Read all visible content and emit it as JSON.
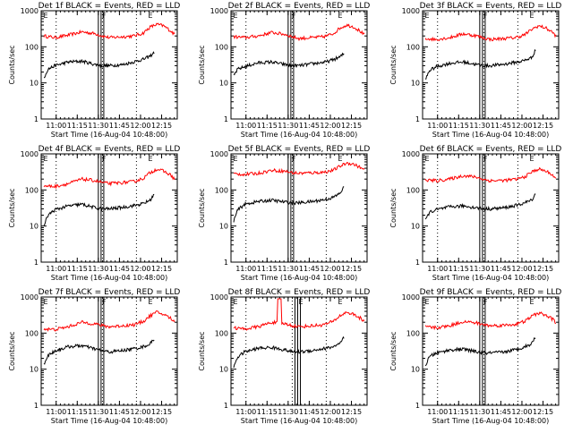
{
  "chart_data": [
    {
      "type": "line",
      "title": "Det 1f BLACK = Events, RED = LLD",
      "xlabel": "Start Time (16-Aug-04 10:48:00)",
      "ylabel": "Counts/sec",
      "xticks": [
        "11:00",
        "11:15",
        "11:30",
        "11:45",
        "12:00",
        "12:15"
      ],
      "yticks": [
        "1",
        "10",
        "100",
        "1000"
      ],
      "ylim": [
        1,
        1000
      ],
      "yscale": "log",
      "series": [
        {
          "color": "#ff0000",
          "x": [
            0.02,
            0.1,
            0.2,
            0.3,
            0.4,
            0.45,
            0.5,
            0.6,
            0.68,
            0.75,
            0.8,
            0.85,
            0.9,
            0.95,
            0.98
          ],
          "values": [
            200,
            180,
            210,
            260,
            230,
            200,
            180,
            190,
            200,
            240,
            350,
            420,
            380,
            280,
            220
          ]
        },
        {
          "color": "#000000",
          "x": [
            0.02,
            0.05,
            0.1,
            0.2,
            0.3,
            0.4,
            0.45,
            0.5,
            0.6,
            0.7,
            0.75,
            0.8,
            0.83
          ],
          "values": [
            14,
            24,
            30,
            38,
            40,
            32,
            30,
            30,
            32,
            40,
            45,
            55,
            70
          ]
        }
      ],
      "annotations": {
        "dotted_x": [
          0.11,
          0.45,
          0.7
        ],
        "box_x": [
          0.42,
          0.46
        ],
        "marks": [
          "E",
          "F",
          "E"
        ],
        "red_spike": null
      }
    },
    {
      "type": "line",
      "title": "Det 2f BLACK = Events, RED = LLD",
      "xlabel": "Start Time (16-Aug-04 10:48:00)",
      "ylabel": "Counts/sec",
      "xticks": [
        "11:00",
        "11:15",
        "11:30",
        "11:45",
        "12:00",
        "12:15"
      ],
      "yticks": [
        "1",
        "10",
        "100",
        "1000"
      ],
      "ylim": [
        1,
        1000
      ],
      "yscale": "log",
      "series": [
        {
          "color": "#ff0000",
          "x": [
            0.02,
            0.1,
            0.2,
            0.3,
            0.4,
            0.45,
            0.5,
            0.6,
            0.68,
            0.75,
            0.8,
            0.85,
            0.9,
            0.95,
            0.98
          ],
          "values": [
            190,
            180,
            200,
            250,
            220,
            190,
            170,
            180,
            190,
            230,
            330,
            400,
            360,
            270,
            210
          ]
        },
        {
          "color": "#000000",
          "x": [
            0.02,
            0.05,
            0.1,
            0.2,
            0.3,
            0.4,
            0.45,
            0.5,
            0.6,
            0.7,
            0.75,
            0.8,
            0.83
          ],
          "values": [
            16,
            24,
            28,
            36,
            38,
            32,
            30,
            30,
            34,
            38,
            44,
            52,
            65
          ]
        }
      ],
      "annotations": {
        "dotted_x": [
          0.11,
          0.45,
          0.7
        ],
        "box_x": [
          0.42,
          0.46
        ],
        "marks": [
          "E",
          "F",
          "E"
        ],
        "red_spike": null
      }
    },
    {
      "type": "line",
      "title": "Det 3f BLACK = Events, RED = LLD",
      "xlabel": "Start Time (16-Aug-04 10:48:00)",
      "ylabel": "Counts/sec",
      "xticks": [
        "11:00",
        "11:15",
        "11:30",
        "11:45",
        "12:00",
        "12:15"
      ],
      "yticks": [
        "1",
        "10",
        "100",
        "1000"
      ],
      "ylim": [
        1,
        1000
      ],
      "yscale": "log",
      "series": [
        {
          "color": "#ff0000",
          "x": [
            0.02,
            0.1,
            0.2,
            0.3,
            0.4,
            0.45,
            0.5,
            0.6,
            0.68,
            0.75,
            0.8,
            0.85,
            0.9,
            0.95,
            0.98
          ],
          "values": [
            170,
            160,
            180,
            230,
            200,
            175,
            160,
            170,
            180,
            215,
            300,
            380,
            340,
            260,
            200
          ]
        },
        {
          "color": "#000000",
          "x": [
            0.02,
            0.05,
            0.1,
            0.2,
            0.3,
            0.4,
            0.45,
            0.5,
            0.6,
            0.7,
            0.75,
            0.8,
            0.83
          ],
          "values": [
            12,
            22,
            28,
            35,
            38,
            32,
            30,
            30,
            33,
            38,
            42,
            50,
            80
          ]
        }
      ],
      "annotations": {
        "dotted_x": [
          0.11,
          0.45,
          0.7
        ],
        "box_x": [
          0.42,
          0.46
        ],
        "marks": [
          "E",
          "F",
          "E"
        ],
        "red_spike": null
      }
    },
    {
      "type": "line",
      "title": "Det 4f BLACK = Events, RED = LLD",
      "xlabel": "Start Time (16-Aug-04 10:48:00)",
      "ylabel": "Counts/sec",
      "xticks": [
        "11:00",
        "11:15",
        "11:30",
        "11:45",
        "12:00",
        "12:15"
      ],
      "yticks": [
        "1",
        "10",
        "100",
        "1000"
      ],
      "ylim": [
        1,
        1000
      ],
      "yscale": "log",
      "series": [
        {
          "color": "#ff0000",
          "x": [
            0.02,
            0.1,
            0.2,
            0.3,
            0.4,
            0.45,
            0.5,
            0.6,
            0.68,
            0.75,
            0.8,
            0.85,
            0.9,
            0.95,
            0.98
          ],
          "values": [
            130,
            125,
            150,
            200,
            180,
            160,
            150,
            160,
            170,
            210,
            300,
            380,
            330,
            260,
            200
          ]
        },
        {
          "color": "#000000",
          "x": [
            0.02,
            0.05,
            0.1,
            0.2,
            0.3,
            0.4,
            0.45,
            0.5,
            0.6,
            0.7,
            0.75,
            0.8,
            0.83
          ],
          "values": [
            10,
            20,
            28,
            36,
            40,
            32,
            30,
            30,
            33,
            38,
            42,
            52,
            75
          ]
        }
      ],
      "annotations": {
        "dotted_x": [
          0.11,
          0.45,
          0.7
        ],
        "box_x": [
          0.42,
          0.46
        ],
        "marks": [
          "E",
          "F",
          "E"
        ],
        "red_spike": null
      }
    },
    {
      "type": "line",
      "title": "Det 5f BLACK = Events, RED = LLD",
      "xlabel": "Start Time (16-Aug-04 10:48:00)",
      "ylabel": "Counts/sec",
      "xticks": [
        "11:00",
        "11:15",
        "11:30",
        "11:45",
        "12:00",
        "12:15"
      ],
      "yticks": [
        "1",
        "10",
        "100",
        "1000"
      ],
      "ylim": [
        1,
        1000
      ],
      "yscale": "log",
      "series": [
        {
          "color": "#ff0000",
          "x": [
            0.02,
            0.1,
            0.2,
            0.3,
            0.4,
            0.45,
            0.5,
            0.6,
            0.68,
            0.75,
            0.8,
            0.85,
            0.9,
            0.95,
            0.98
          ],
          "values": [
            280,
            270,
            290,
            350,
            330,
            300,
            290,
            300,
            310,
            350,
            450,
            560,
            520,
            420,
            350
          ]
        },
        {
          "color": "#000000",
          "x": [
            0.02,
            0.05,
            0.1,
            0.2,
            0.3,
            0.4,
            0.45,
            0.5,
            0.6,
            0.7,
            0.75,
            0.8,
            0.83
          ],
          "values": [
            14,
            28,
            40,
            48,
            52,
            46,
            44,
            44,
            48,
            55,
            62,
            80,
            120
          ]
        }
      ],
      "annotations": {
        "dotted_x": [
          0.11,
          0.45,
          0.7
        ],
        "box_x": [
          0.42,
          0.46
        ],
        "marks": [
          "E",
          "F",
          "E"
        ],
        "red_spike": null
      }
    },
    {
      "type": "line",
      "title": "Det 6f BLACK = Events, RED = LLD",
      "xlabel": "Start Time (16-Aug-04 10:48:00)",
      "ylabel": "Counts/sec",
      "xticks": [
        "11:00",
        "11:15",
        "11:30",
        "11:45",
        "12:00",
        "12:15"
      ],
      "yticks": [
        "1",
        "10",
        "100",
        "1000"
      ],
      "ylim": [
        1,
        1000
      ],
      "yscale": "log",
      "series": [
        {
          "color": "#ff0000",
          "x": [
            0.02,
            0.1,
            0.2,
            0.3,
            0.4,
            0.45,
            0.5,
            0.6,
            0.68,
            0.75,
            0.8,
            0.85,
            0.9,
            0.95,
            0.98
          ],
          "values": [
            190,
            180,
            200,
            250,
            225,
            195,
            180,
            185,
            195,
            230,
            310,
            380,
            340,
            270,
            210
          ]
        },
        {
          "color": "#000000",
          "x": [
            0.02,
            0.05,
            0.1,
            0.2,
            0.3,
            0.4,
            0.45,
            0.5,
            0.6,
            0.7,
            0.75,
            0.8,
            0.83
          ],
          "values": [
            14,
            24,
            28,
            34,
            36,
            32,
            30,
            30,
            32,
            38,
            44,
            52,
            78
          ]
        }
      ],
      "annotations": {
        "dotted_x": [
          0.11,
          0.45,
          0.7
        ],
        "box_x": [
          0.42,
          0.46
        ],
        "marks": [
          "E",
          "F",
          "E"
        ],
        "red_spike": null
      }
    },
    {
      "type": "line",
      "title": "Det 7f BLACK = Events, RED = LLD",
      "xlabel": "Start Time (16-Aug-04 10:48:00)",
      "ylabel": "Counts/sec",
      "xticks": [
        "11:00",
        "11:15",
        "11:30",
        "11:45",
        "12:00",
        "12:15"
      ],
      "yticks": [
        "1",
        "10",
        "100",
        "1000"
      ],
      "ylim": [
        1,
        1000
      ],
      "yscale": "log",
      "series": [
        {
          "color": "#ff0000",
          "x": [
            0.02,
            0.1,
            0.2,
            0.3,
            0.4,
            0.45,
            0.5,
            0.6,
            0.68,
            0.75,
            0.8,
            0.85,
            0.9,
            0.95,
            0.98
          ],
          "values": [
            130,
            125,
            150,
            200,
            180,
            160,
            150,
            160,
            170,
            210,
            300,
            380,
            330,
            260,
            200
          ]
        },
        {
          "color": "#000000",
          "x": [
            0.02,
            0.05,
            0.1,
            0.2,
            0.3,
            0.4,
            0.45,
            0.5,
            0.6,
            0.7,
            0.75,
            0.8,
            0.83
          ],
          "values": [
            14,
            24,
            32,
            42,
            45,
            36,
            32,
            30,
            33,
            38,
            42,
            50,
            70
          ]
        }
      ],
      "annotations": {
        "dotted_x": [
          0.11,
          0.45,
          0.7
        ],
        "box_x": [
          0.42,
          0.46
        ],
        "marks": [
          "E",
          "F",
          "E"
        ],
        "red_spike": null
      }
    },
    {
      "type": "line",
      "title": "Det 8f BLACK = Events, RED = LLD",
      "xlabel": "Start Time (16-Aug-04 10:48:00)",
      "ylabel": "Counts/sec",
      "xticks": [
        "11:00",
        "11:15",
        "11:30",
        "11:45",
        "12:00",
        "12:15"
      ],
      "yticks": [
        "1",
        "10",
        "100",
        "1000"
      ],
      "ylim": [
        1,
        1000
      ],
      "yscale": "log",
      "series": [
        {
          "color": "#ff0000",
          "x": [
            0.02,
            0.1,
            0.2,
            0.3,
            0.4,
            0.45,
            0.5,
            0.6,
            0.68,
            0.75,
            0.8,
            0.85,
            0.9,
            0.95,
            0.98
          ],
          "values": [
            140,
            130,
            150,
            200,
            180,
            160,
            150,
            160,
            170,
            210,
            300,
            380,
            330,
            260,
            200
          ]
        },
        {
          "color": "#000000",
          "x": [
            0.02,
            0.05,
            0.1,
            0.2,
            0.3,
            0.4,
            0.45,
            0.5,
            0.6,
            0.7,
            0.75,
            0.8,
            0.83
          ],
          "values": [
            12,
            22,
            30,
            38,
            40,
            34,
            30,
            30,
            33,
            38,
            42,
            50,
            75
          ]
        }
      ],
      "annotations": {
        "dotted_x": [
          0.11,
          0.45,
          0.7
        ],
        "box_x": [
          0.47,
          0.51
        ],
        "marks": [
          "E",
          "E",
          "E"
        ],
        "red_spike": [
          0.34,
          0.37
        ]
      }
    },
    {
      "type": "line",
      "title": "Det 9f BLACK = Events, RED = LLD",
      "xlabel": "Start Time (16-Aug-04 10:48:00)",
      "ylabel": "Counts/sec",
      "xticks": [
        "11:00",
        "11:15",
        "11:30",
        "11:45",
        "12:00",
        "12:15"
      ],
      "yticks": [
        "1",
        "10",
        "100",
        "1000"
      ],
      "ylim": [
        1,
        1000
      ],
      "yscale": "log",
      "series": [
        {
          "color": "#ff0000",
          "x": [
            0.02,
            0.1,
            0.2,
            0.3,
            0.4,
            0.45,
            0.5,
            0.6,
            0.68,
            0.75,
            0.8,
            0.85,
            0.9,
            0.95,
            0.98
          ],
          "values": [
            150,
            140,
            160,
            210,
            190,
            170,
            160,
            165,
            175,
            210,
            290,
            360,
            320,
            250,
            200
          ]
        },
        {
          "color": "#000000",
          "x": [
            0.02,
            0.05,
            0.1,
            0.2,
            0.3,
            0.4,
            0.45,
            0.5,
            0.6,
            0.7,
            0.75,
            0.8,
            0.83
          ],
          "values": [
            12,
            22,
            28,
            34,
            36,
            30,
            28,
            28,
            30,
            36,
            42,
            50,
            80
          ]
        }
      ],
      "annotations": {
        "dotted_x": [
          0.11,
          0.45,
          0.7
        ],
        "box_x": [
          0.42,
          0.46
        ],
        "marks": [
          "E",
          "F",
          "E"
        ],
        "red_spike": null
      }
    }
  ]
}
